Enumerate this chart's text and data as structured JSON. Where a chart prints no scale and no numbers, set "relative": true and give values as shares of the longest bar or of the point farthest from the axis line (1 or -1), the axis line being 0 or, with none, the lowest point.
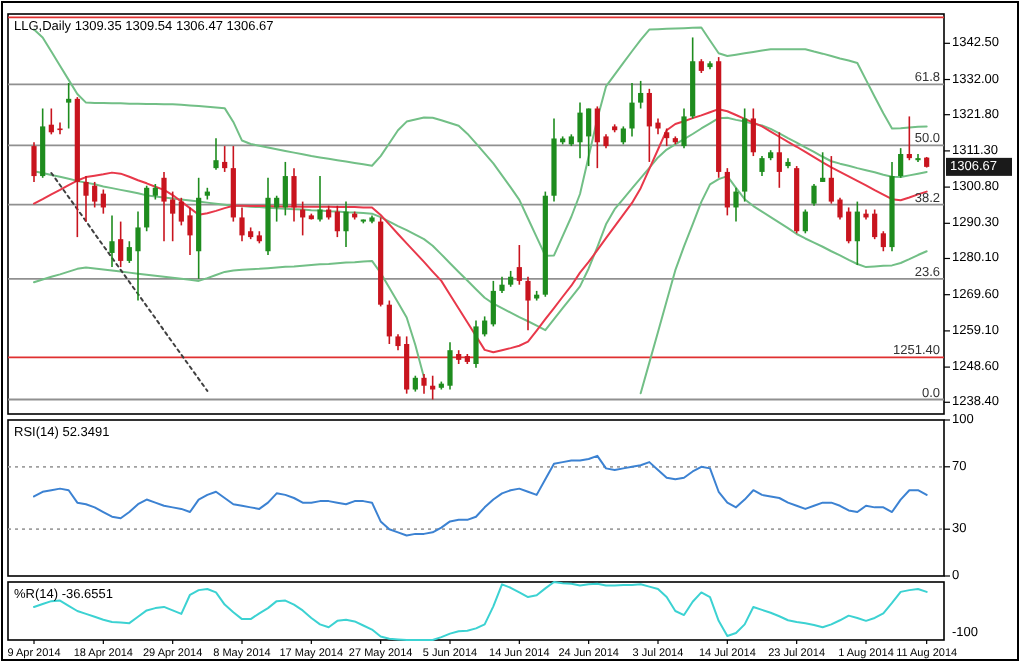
{
  "chart_data": [
    {
      "type": "candlestick",
      "title": "LLG,Daily 1309.35 1309.54 1306.47 1306.67",
      "tick_labels": "y",
      "categories": [
        null,
        null,
        null,
        null,
        null,
        null,
        null,
        null,
        null,
        null,
        null,
        null,
        null,
        null,
        null,
        null,
        null,
        null,
        null,
        null,
        null,
        null,
        null,
        null,
        null,
        null,
        null,
        null,
        null,
        null,
        null,
        null,
        null,
        null,
        null,
        null,
        null,
        null,
        null,
        null,
        null,
        null,
        null,
        null,
        null,
        null,
        null,
        null,
        null,
        null,
        null,
        null,
        null,
        null,
        null,
        null,
        null,
        null,
        null,
        null,
        null,
        null,
        null,
        null,
        null,
        null,
        null,
        null,
        null,
        null,
        null,
        null,
        null,
        null,
        null,
        null,
        null,
        null,
        null,
        null,
        null,
        null,
        null,
        null,
        null,
        null,
        null,
        null,
        null,
        null,
        null,
        null,
        null,
        null,
        null,
        null,
        null,
        null,
        null,
        null,
        null,
        null,
        null,
        null
      ],
      "colors": [
        "#c8141e",
        "#1e8c1e",
        "#c8141e",
        "#c8141e",
        "#1e8c1e",
        "#c8141e",
        "#c8141e",
        "#c8141e",
        "#c8141e",
        "#1e8c1e",
        "#c8141e",
        "#1e8c1e",
        "#1e8c1e",
        "#1e8c1e",
        "#1e8c1e",
        "#c8141e",
        "#c8141e",
        "#c8141e",
        "#c8141e",
        "#1e8c1e",
        "#1e8c1e",
        "#1e8c1e",
        "#c8141e",
        "#c8141e",
        "#c8141e",
        "#c8141e",
        "#c8141e",
        "#1e8c1e",
        "#1e8c1e",
        "#1e8c1e",
        "#c8141e",
        "#c8141e",
        "#c8141e",
        "#1e8c1e",
        "#c8141e",
        "#c8141e",
        "#1e8c1e",
        "#c8141e",
        "#1e8c1e",
        "#1e8c1e",
        "#c8141e",
        "#c8141e",
        "#c8141e",
        "#c8141e",
        "#1e8c1e",
        "#c8141e",
        "#c8141e",
        "#1e8c1e",
        "#1e8c1e",
        "#c8141e",
        "#c8141e",
        "#1e8c1e",
        "#1e8c1e",
        "#1e8c1e",
        "#1e8c1e",
        "#1e8c1e",
        "#c8141e",
        "#c8141e",
        "#1e8c1e",
        "#1e8c1e",
        "#1e8c1e",
        "#1e8c1e",
        "#1e8c1e",
        "#1e8c1e",
        "#1e8c1e",
        "#c8141e",
        "#c8141e",
        "#c8141e",
        "#1e8c1e",
        "#1e8c1e",
        "#1e8c1e",
        "#c8141e",
        "#c8141e",
        "#c8141e",
        "#c8141e",
        "#1e8c1e",
        "#1e8c1e",
        "#c8141e",
        "#1e8c1e",
        "#c8141e",
        "#c8141e",
        "#1e8c1e",
        "#1e8c1e",
        "#c8141e",
        "#1e8c1e",
        "#1e8c1e",
        "#c8141e",
        "#1e8c1e",
        "#c8141e",
        "#1e8c1e",
        "#1e8c1e",
        "#1e8c1e",
        "#c8141e",
        "#c8141e",
        "#c8141e",
        "#1e8c1e",
        "#c8141e",
        "#c8141e",
        "#c8141e",
        "#1e8c1e",
        "#1e8c1e",
        "#c8141e",
        "#1e8c1e",
        "#c8141e"
      ],
      "ohlc": [
        [
          1312.7,
          1313.8,
          1302.3,
          1304.0
        ],
        [
          1304.0,
          1323.6,
          1303.5,
          1318.4
        ],
        [
          1318.9,
          1323.6,
          1316.1,
          1316.7
        ],
        [
          1317.8,
          1319.5,
          1316.1,
          1317.5
        ],
        [
          1325.3,
          1331.0,
          1317.8,
          1326.4
        ],
        [
          1326.4,
          1326.9,
          1286.3,
          1302.3
        ],
        [
          1302.3,
          1304.0,
          1290.8,
          1298.3
        ],
        [
          1301.2,
          1302.3,
          1294.9,
          1296.6
        ],
        [
          1298.9,
          1300.1,
          1293.1,
          1294.9
        ],
        [
          1281.7,
          1292.6,
          1277.6,
          1285.1
        ],
        [
          1285.7,
          1290.8,
          1277.6,
          1279.4
        ],
        [
          1279.4,
          1285.1,
          1278.8,
          1283.4
        ],
        [
          1282.2,
          1293.7,
          1267.9,
          1289.1
        ],
        [
          1289.1,
          1301.2,
          1288.0,
          1300.6
        ],
        [
          1298.3,
          1301.7,
          1297.2,
          1300.6
        ],
        [
          1303.5,
          1305.2,
          1285.1,
          1296.6
        ],
        [
          1297.2,
          1299.5,
          1285.1,
          1293.1
        ],
        [
          1296.6,
          1297.7,
          1289.7,
          1290.8
        ],
        [
          1292.6,
          1294.9,
          1281.1,
          1286.8
        ],
        [
          1282.2,
          1303.5,
          1274.2,
          1297.7
        ],
        [
          1298.3,
          1300.6,
          1297.2,
          1299.5
        ],
        [
          1306.3,
          1315.0,
          1305.8,
          1308.6
        ],
        [
          1308.1,
          1312.7,
          1305.2,
          1306.3
        ],
        [
          1306.3,
          1312.7,
          1290.8,
          1292.0
        ],
        [
          1292.0,
          1294.9,
          1285.1,
          1286.8
        ],
        [
          1288.0,
          1289.1,
          1285.7,
          1286.3
        ],
        [
          1286.8,
          1288.0,
          1284.5,
          1285.1
        ],
        [
          1282.2,
          1303.5,
          1281.1,
          1297.7
        ],
        [
          1294.9,
          1298.3,
          1290.8,
          1297.7
        ],
        [
          1294.9,
          1308.1,
          1292.6,
          1304.0
        ],
        [
          1304.0,
          1306.3,
          1290.8,
          1294.9
        ],
        [
          1294.3,
          1296.6,
          1286.8,
          1292.0
        ],
        [
          1292.6,
          1293.1,
          1291.4,
          1291.5
        ],
        [
          1291.4,
          1304.0,
          1290.8,
          1294.3
        ],
        [
          1294.3,
          1295.4,
          1291.4,
          1292.0
        ],
        [
          1293.7,
          1295.4,
          1286.3,
          1288.0
        ],
        [
          1288.0,
          1296.6,
          1283.4,
          1293.7
        ],
        [
          1293.1,
          1293.7,
          1291.4,
          1292.0
        ],
        [
          1290.8,
          1291.4,
          1290.3,
          1291.4
        ],
        [
          1290.8,
          1292.6,
          1290.3,
          1292.0
        ],
        [
          1290.8,
          1292.0,
          1266.2,
          1266.7
        ],
        [
          1266.7,
          1267.9,
          1255.3,
          1257.5
        ],
        [
          1257.5,
          1258.1,
          1253.5,
          1254.7
        ],
        [
          1255.3,
          1257.5,
          1240.9,
          1242.1
        ],
        [
          1242.1,
          1246.1,
          1241.5,
          1245.5
        ],
        [
          1245.5,
          1246.6,
          1240.9,
          1243.2
        ],
        [
          1243.2,
          1246.1,
          1239.2,
          1242.1
        ],
        [
          1242.6,
          1244.4,
          1242.1,
          1243.8
        ],
        [
          1243.2,
          1255.8,
          1242.1,
          1253.5
        ],
        [
          1252.4,
          1253.5,
          1249.5,
          1250.7
        ],
        [
          1251.8,
          1252.4,
          1249.5,
          1250.1
        ],
        [
          1249.5,
          1262.1,
          1248.4,
          1260.4
        ],
        [
          1258.1,
          1263.3,
          1257.5,
          1262.1
        ],
        [
          1261.0,
          1273.6,
          1260.4,
          1270.7
        ],
        [
          1270.7,
          1274.8,
          1270.1,
          1272.5
        ],
        [
          1272.5,
          1276.5,
          1271.9,
          1274.8
        ],
        [
          1277.6,
          1284.0,
          1272.5,
          1273.6
        ],
        [
          1273.6,
          1274.8,
          1259.3,
          1267.9
        ],
        [
          1268.5,
          1270.7,
          1267.9,
          1269.6
        ],
        [
          1269.6,
          1299.5,
          1269.0,
          1298.3
        ],
        [
          1298.3,
          1320.7,
          1296.6,
          1314.9
        ],
        [
          1313.8,
          1315.5,
          1313.2,
          1314.9
        ],
        [
          1313.2,
          1316.1,
          1312.7,
          1315.5
        ],
        [
          1313.8,
          1325.3,
          1309.2,
          1322.4
        ],
        [
          1315.5,
          1323.6,
          1306.9,
          1323.6
        ],
        [
          1323.6,
          1324.2,
          1306.3,
          1313.8
        ],
        [
          1315.5,
          1316.1,
          1312.1,
          1312.7
        ],
        [
          1318.4,
          1319.0,
          1316.7,
          1317.3
        ],
        [
          1313.8,
          1318.4,
          1313.2,
          1317.8
        ],
        [
          1317.8,
          1331.0,
          1315.5,
          1325.3
        ],
        [
          1325.3,
          1331.6,
          1323.6,
          1328.1
        ],
        [
          1328.1,
          1329.3,
          1308.1,
          1318.4
        ],
        [
          1319.5,
          1320.7,
          1316.1,
          1317.8
        ],
        [
          1316.7,
          1317.8,
          1312.7,
          1315.0
        ],
        [
          1315.0,
          1315.5,
          1313.2,
          1313.8
        ],
        [
          1312.7,
          1323.6,
          1312.1,
          1321.3
        ],
        [
          1321.3,
          1344.2,
          1320.7,
          1337.3
        ],
        [
          1337.3,
          1337.9,
          1333.9,
          1334.5
        ],
        [
          1335.6,
          1337.3,
          1335.0,
          1336.7
        ],
        [
          1337.3,
          1338.5,
          1303.5,
          1305.2
        ],
        [
          1305.2,
          1306.3,
          1292.6,
          1294.9
        ],
        [
          1294.9,
          1300.6,
          1290.8,
          1299.5
        ],
        [
          1299.5,
          1323.6,
          1296.6,
          1320.7
        ],
        [
          1320.7,
          1323.6,
          1309.8,
          1310.9
        ],
        [
          1305.2,
          1309.8,
          1304.0,
          1309.2
        ],
        [
          1309.2,
          1311.5,
          1308.6,
          1310.9
        ],
        [
          1310.9,
          1316.7,
          1300.6,
          1305.2
        ],
        [
          1306.9,
          1309.2,
          1306.3,
          1308.1
        ],
        [
          1306.3,
          1306.9,
          1287.4,
          1288.0
        ],
        [
          1288.0,
          1294.3,
          1287.4,
          1293.7
        ],
        [
          1296.0,
          1301.7,
          1295.4,
          1301.2
        ],
        [
          1302.3,
          1310.9,
          1302.3,
          1303.5
        ],
        [
          1303.5,
          1309.8,
          1296.0,
          1296.6
        ],
        [
          1297.2,
          1297.7,
          1291.4,
          1292.0
        ],
        [
          1293.7,
          1294.9,
          1284.5,
          1285.1
        ],
        [
          1285.1,
          1296.6,
          1278.2,
          1293.7
        ],
        [
          1293.1,
          1294.3,
          1291.4,
          1292.0
        ],
        [
          1293.1,
          1294.3,
          1285.7,
          1286.3
        ],
        [
          1287.4,
          1288.0,
          1282.2,
          1283.4
        ],
        [
          1283.4,
          1308.1,
          1282.2,
          1304.0
        ],
        [
          1304.0,
          1312.1,
          1303.5,
          1310.4
        ],
        [
          1310.4,
          1321.3,
          1308.6,
          1309.2
        ],
        [
          1308.6,
          1310.4,
          1308.1,
          1309.2
        ],
        [
          1309.35,
          1309.54,
          1306.47,
          1306.67
        ]
      ],
      "series": [
        {
          "type": "line",
          "color": "#72bf86",
          "values": [
            1346.5,
            1344.2,
            1340.1,
            1336.0,
            1331.9,
            1327.8,
            1325.3,
            1325.2,
            1325.2,
            1325.1,
            1325.1,
            1325.0,
            1325.0,
            1324.9,
            1324.9,
            1324.8,
            1324.8,
            1324.7,
            1324.5,
            1324.3,
            1324.1,
            1323.9,
            1323.7,
            1319.7,
            1314.3,
            1313.3,
            1312.8,
            1312.3,
            1311.8,
            1311.3,
            1310.8,
            1310.3,
            1309.8,
            1309.4,
            1309.0,
            1308.6,
            1308.2,
            1307.8,
            1307.4,
            1307.0,
            1309.8,
            1313.5,
            1317.3,
            1319.8,
            1320.4,
            1321.0,
            1320.9,
            1320.2,
            1319.4,
            1318.6,
            1316.3,
            1313.5,
            1310.6,
            1307.7,
            1304.2,
            1300.7,
            1297.1,
            1291.7,
            1286.3,
            1280.9,
            1281.0,
            1286.6,
            1292.2,
            1298.8,
            1309.7,
            1320.6,
            1330.0,
            1333.4,
            1336.8,
            1340.2,
            1343.5,
            1346.5,
            1346.6,
            1346.7,
            1346.8,
            1346.9,
            1347.0,
            1347.1,
            1343.3,
            1339.6,
            1338.8,
            1339.2,
            1339.6,
            1340.0,
            1340.4,
            1340.8,
            1340.8,
            1340.8,
            1340.8,
            1340.8,
            1340.1,
            1339.5,
            1338.8,
            1338.1,
            1337.5,
            1336.8,
            1331.9,
            1327.0,
            1322.2,
            1317.8,
            1317.9,
            1318.1,
            1318.3,
            1318.4
          ]
        },
        {
          "type": "line",
          "color": "#72bf86",
          "values": [
            1305.4,
            1304.9,
            1304.3,
            1303.8,
            1303.2,
            1302.6,
            1302.1,
            1301.6,
            1301.0,
            1300.5,
            1300.0,
            1299.5,
            1299.0,
            1298.4,
            1298.1,
            1297.8,
            1297.5,
            1297.2,
            1296.9,
            1296.6,
            1296.3,
            1296.0,
            1295.7,
            1295.4,
            1295.3,
            1295.1,
            1295.0,
            1294.8,
            1294.7,
            1294.5,
            1294.4,
            1294.3,
            1294.1,
            1294.0,
            1293.8,
            1293.7,
            1293.5,
            1293.4,
            1293.3,
            1293.1,
            1292.1,
            1290.8,
            1289.5,
            1288.3,
            1287.0,
            1285.7,
            1283.8,
            1281.3,
            1278.7,
            1276.2,
            1273.7,
            1271.2,
            1268.7,
            1267.0,
            1265.7,
            1264.4,
            1263.1,
            1261.9,
            1260.6,
            1259.3,
            1262.5,
            1265.7,
            1268.8,
            1272.0,
            1277.2,
            1283.4,
            1290.0,
            1294.4,
            1297.4,
            1300.4,
            1303.4,
            1306.4,
            1309.4,
            1311.7,
            1313.2,
            1314.7,
            1316.2,
            1317.8,
            1319.3,
            1320.8,
            1320.9,
            1320.3,
            1319.8,
            1319.2,
            1318.7,
            1317.7,
            1316.4,
            1315.0,
            1313.7,
            1312.3,
            1311.0,
            1309.6,
            1308.3,
            1307.6,
            1307.0,
            1306.3,
            1305.7,
            1305.1,
            1304.4,
            1303.8,
            1303.7,
            1304.2,
            1304.7,
            1305.2
          ]
        },
        {
          "type": "line",
          "color": "#72bf86",
          "values": [
            1273.2,
            1274.0,
            1274.8,
            1275.5,
            1276.3,
            1277.1,
            1277.5,
            1277.2,
            1276.9,
            1276.6,
            1276.3,
            1276.0,
            1275.7,
            1275.4,
            1275.1,
            1274.8,
            1274.5,
            1274.2,
            1273.9,
            1273.6,
            1274.4,
            1275.3,
            1276.2,
            1276.6,
            1276.8,
            1277.0,
            1277.1,
            1277.3,
            1277.5,
            1277.7,
            1277.8,
            1278.0,
            1278.2,
            1278.4,
            1278.5,
            1278.7,
            1278.9,
            1279.0,
            1279.2,
            1279.4,
            1275.9,
            1271.6,
            1267.3,
            1263.0,
            1255.0,
            1245.6,
            null,
            null,
            null,
            null,
            null,
            null,
            null,
            null,
            null,
            null,
            null,
            null,
            null,
            null,
            null,
            null,
            null,
            null,
            null,
            null,
            null,
            null,
            null,
            null,
            1241.0,
            1249.9,
            1258.8,
            1267.8,
            1276.7,
            1283.6,
            1290.0,
            1296.5,
            1301.6,
            1303.1,
            1304.0,
            1300.6,
            1297.3,
            1295.3,
            1293.7,
            1292.1,
            1290.5,
            1288.9,
            1287.2,
            1285.9,
            1284.7,
            1283.5,
            1282.2,
            1281.0,
            1279.7,
            1278.5,
            1277.6,
            1277.8,
            1278.0,
            1278.1,
            1278.8,
            1279.9,
            1281.1,
            1282.2
          ]
        },
        {
          "type": "line",
          "color": "#e8384a",
          "values": [
            1296.0,
            1297.3,
            1298.7,
            1300.0,
            1301.4,
            1302.7,
            1303.7,
            1304.1,
            1304.5,
            1305.0,
            1304.7,
            1303.8,
            1302.8,
            1301.9,
            1300.9,
            1300.0,
            1298.5,
            1296.6,
            1294.7,
            1292.8,
            1293.2,
            1293.9,
            1294.7,
            1295.4,
            1295.4,
            1295.3,
            1295.3,
            1295.3,
            1295.2,
            1295.2,
            1295.2,
            1295.1,
            1295.1,
            1295.1,
            1295.1,
            1295.0,
            1295.0,
            1295.0,
            1294.9,
            1294.9,
            1292.7,
            1290.0,
            1287.2,
            1284.5,
            1281.8,
            1279.1,
            1276.3,
            1273.6,
            1269.6,
            1265.6,
            1261.6,
            1257.6,
            1253.6,
            1252.9,
            1253.5,
            1254.1,
            1254.8,
            1256.0,
            1259.2,
            1262.5,
            1265.7,
            1269.0,
            1272.2,
            1276.0,
            1279.1,
            1282.5,
            1286.0,
            1289.4,
            1292.8,
            1296.2,
            1300.5,
            1306.1,
            1311.7,
            1317.3,
            1319.1,
            1319.9,
            1320.8,
            1321.6,
            1322.5,
            1323.4,
            1322.8,
            1321.7,
            1320.6,
            1319.5,
            1318.4,
            1316.9,
            1315.4,
            1313.9,
            1312.5,
            1311.0,
            1309.5,
            1308.0,
            1306.5,
            1305.2,
            1303.9,
            1302.6,
            1301.3,
            1299.9,
            1298.6,
            1297.3,
            1297.0,
            1297.8,
            1298.7,
            1299.5
          ]
        },
        {
          "type": "line",
          "color": "#404040",
          "line_style": "dotted",
          "values": [
            null,
            null,
            1304.9,
            1301.4,
            1297.9,
            1294.4,
            1290.9,
            1287.3,
            1283.8,
            1280.3,
            1276.8,
            1273.3,
            1269.8,
            1266.3,
            1262.8,
            1259.2,
            1255.7,
            1252.2,
            1248.7,
            1245.2,
            1241.7,
            null,
            null,
            null,
            null,
            null,
            null,
            null,
            null,
            null,
            null,
            null,
            null,
            null,
            null,
            null,
            null,
            null,
            null,
            null,
            null,
            null,
            null,
            null,
            null,
            null,
            null,
            null,
            null,
            null,
            null,
            null,
            null,
            null,
            null,
            null,
            null,
            null,
            null,
            null,
            null,
            null,
            null,
            null,
            null,
            null,
            null,
            null,
            null,
            null,
            null,
            null,
            null,
            null,
            null,
            null,
            null,
            null,
            null,
            null,
            null,
            null,
            null,
            null,
            null,
            null,
            null,
            null,
            null,
            null,
            null,
            null,
            null,
            null,
            null,
            null,
            null,
            null,
            null,
            null,
            null,
            null,
            null,
            null
          ]
        }
      ],
      "ylim": [
        1235,
        1351
      ],
      "yticks": [
        {
          "value": 1342.5,
          "label": "1342.50"
        },
        {
          "value": 1332,
          "label": "1332.00"
        },
        {
          "value": 1321.8,
          "label": "1321.80"
        },
        {
          "value": 1311.3,
          "label": "1311.30"
        },
        {
          "value": 1300.8,
          "label": "1300.80"
        },
        {
          "value": 1290.3,
          "label": "1290.30"
        },
        {
          "value": 1280.1,
          "label": "1280.10"
        },
        {
          "value": 1269.6,
          "label": "1269.60"
        },
        {
          "value": 1259.1,
          "label": "1259.10"
        },
        {
          "value": 1248.6,
          "label": "1248.60"
        },
        {
          "value": 1238.4,
          "label": "1238.40"
        }
      ],
      "ref_lines": [
        {
          "axis": "y",
          "value": 1350,
          "color": "#e03030"
        },
        {
          "axis": "y",
          "value": 1330.6,
          "color": "#909090"
        },
        {
          "axis": "y",
          "value": 1312.9,
          "color": "#909090"
        },
        {
          "axis": "y",
          "value": 1295.7,
          "color": "#909090"
        },
        {
          "axis": "y",
          "value": 1274.2,
          "color": "#909090"
        },
        {
          "axis": "y",
          "value": 1251.4,
          "label": "1251.40",
          "color": "#e03030"
        },
        {
          "axis": "y",
          "value": 1239.2,
          "color": "#909090"
        }
      ],
      "annotations": [
        "1306.67",
        {
          "text": "61.8",
          "y": 1330.6
        },
        {
          "text": "50.0",
          "y": 1312.9
        },
        {
          "text": "38.2",
          "y": 1295.7
        },
        {
          "text": "23.6",
          "y": 1274.2
        },
        {
          "text": "0.0",
          "y": 1239.2
        }
      ]
    },
    {
      "type": "line",
      "title": "RSI(14) 52.3491",
      "tick_labels": "y",
      "categories": [
        null,
        null,
        null,
        null,
        null,
        null,
        null,
        null,
        null,
        null,
        null,
        null,
        null,
        null,
        null,
        null,
        null,
        null,
        null,
        null,
        null,
        null,
        null,
        null,
        null,
        null,
        null,
        null,
        null,
        null,
        null,
        null,
        null,
        null,
        null,
        null,
        null,
        null,
        null,
        null,
        null,
        null,
        null,
        null,
        null,
        null,
        null,
        null,
        null,
        null,
        null,
        null,
        null,
        null,
        null,
        null,
        null,
        null,
        null,
        null,
        null,
        null,
        null,
        null,
        null,
        null,
        null,
        null,
        null,
        null,
        null,
        null,
        null,
        null,
        null,
        null,
        null,
        null,
        null,
        null,
        null,
        null,
        null,
        null,
        null,
        null,
        null,
        null,
        null,
        null,
        null,
        null,
        null,
        null,
        null,
        null,
        null,
        null,
        null,
        null,
        null,
        null,
        null,
        null
      ],
      "ylim": [
        0,
        100
      ],
      "yticks": [
        100,
        70,
        30,
        0
      ],
      "ref_lines": [
        {
          "axis": "y",
          "value": 70,
          "color": "#a0a0a0",
          "line_style": "dotted"
        },
        {
          "axis": "y",
          "value": 30,
          "color": "#a0a0a0",
          "line_style": "dotted"
        }
      ],
      "series": [
        {
          "color": "#3c82d2",
          "values": [
            51,
            54,
            55,
            56,
            55,
            47,
            46,
            44,
            41,
            38,
            37,
            41,
            46,
            49,
            47,
            45,
            44,
            43,
            41,
            49,
            52,
            54,
            50,
            46,
            45,
            44,
            43,
            47,
            53,
            52,
            50,
            47,
            47,
            48,
            48,
            47,
            46,
            48,
            48,
            47,
            35,
            30,
            28,
            26,
            27,
            27,
            28,
            31,
            35,
            36,
            36,
            38,
            44,
            49,
            53,
            55,
            56,
            54,
            52,
            62,
            72,
            73,
            74,
            74,
            75,
            77,
            69,
            68,
            69,
            70,
            71,
            73,
            68,
            63,
            62,
            63,
            67,
            70,
            69,
            54,
            47,
            44,
            49,
            55,
            52,
            51,
            50,
            47,
            45,
            43,
            45,
            47,
            47,
            45,
            42,
            41,
            45,
            44,
            44,
            41,
            49,
            55,
            55,
            52
          ]
        }
      ]
    },
    {
      "type": "line",
      "title": "%R(14) -36.6551",
      "relative": true,
      "tick_labels": "x",
      "categories": [
        "9 Apr 2014",
        null,
        null,
        null,
        null,
        null,
        null,
        null,
        "18 Apr 2014",
        null,
        null,
        null,
        null,
        null,
        null,
        null,
        "29 Apr 2014",
        null,
        null,
        null,
        null,
        null,
        null,
        null,
        "8 May 2014",
        null,
        null,
        null,
        null,
        null,
        null,
        null,
        "17 May 2014",
        null,
        null,
        null,
        null,
        null,
        null,
        null,
        "27 May 2014",
        null,
        null,
        null,
        null,
        null,
        null,
        null,
        "5 Jun 2014",
        null,
        null,
        null,
        null,
        null,
        null,
        null,
        "14 Jun 2014",
        null,
        null,
        null,
        null,
        null,
        null,
        null,
        "24 Jun 2014",
        null,
        null,
        null,
        null,
        null,
        null,
        null,
        "3 Jul 2014",
        null,
        null,
        null,
        null,
        null,
        null,
        null,
        "14 Jul 2014",
        null,
        null,
        null,
        null,
        null,
        null,
        null,
        "23 Jul 2014",
        null,
        null,
        null,
        null,
        null,
        null,
        null,
        "1 Aug 2014",
        null,
        null,
        null,
        null,
        null,
        null,
        "11 Aug 2014"
      ],
      "annotations": [
        "-100"
      ],
      "series": [
        {
          "color": "#3cd2d2",
          "values": [
            0.57,
            0.62,
            0.67,
            0.68,
            0.59,
            0.5,
            0.45,
            0.4,
            0.35,
            0.31,
            0.3,
            0.29,
            0.4,
            0.51,
            0.55,
            0.57,
            0.51,
            0.45,
            0.78,
            0.86,
            0.88,
            0.82,
            0.61,
            0.48,
            0.36,
            0.36,
            0.46,
            0.55,
            0.67,
            0.68,
            0.61,
            0.51,
            0.38,
            0.27,
            0.22,
            0.33,
            0.35,
            0.32,
            0.25,
            0.18,
            0.06,
            0.02,
            0.01,
            0,
            0,
            0,
            0,
            0.05,
            0.11,
            0.15,
            0.16,
            0.2,
            0.27,
            0.58,
            0.96,
            0.9,
            0.82,
            0.74,
            0.77,
            0.89,
            1,
            0.98,
            0.97,
            0.94,
            0.96,
            0.97,
            0.94,
            0.94,
            0.95,
            0.95,
            0.96,
            0.92,
            0.88,
            0.74,
            0.5,
            0.43,
            0.66,
            0.82,
            0.74,
            0.33,
            0.07,
            0.12,
            0.27,
            0.57,
            0.52,
            0.47,
            0.41,
            0.34,
            0.31,
            0.29,
            0.26,
            0.22,
            0.27,
            0.34,
            0.42,
            0.38,
            0.33,
            0.38,
            0.46,
            0.64,
            0.83,
            0.86,
            0.88,
            0.83
          ]
        }
      ]
    }
  ]
}
